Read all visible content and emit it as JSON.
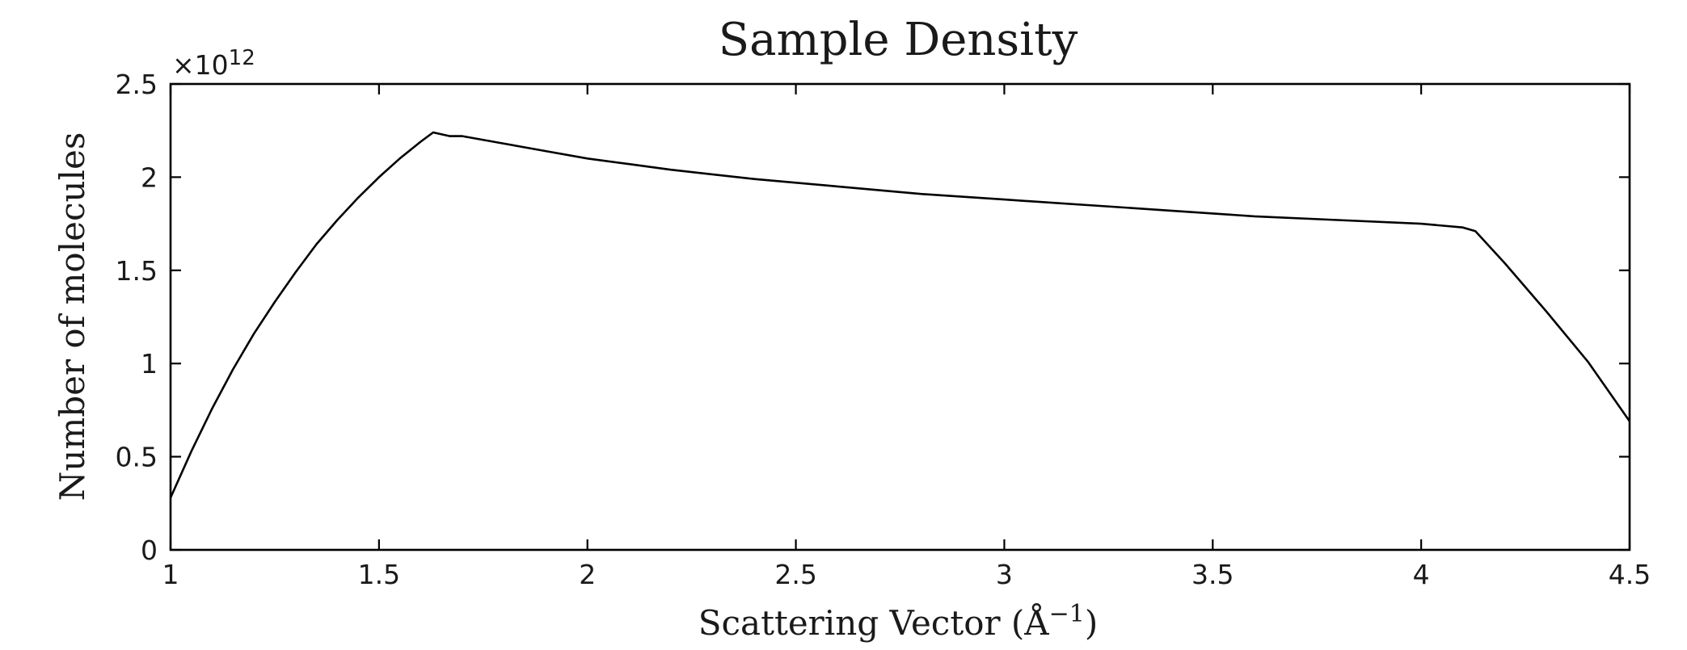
{
  "chart_data": {
    "type": "line",
    "title": "Sample Density",
    "xlabel": "Scattering Vector (Å",
    "xlabel_exponent": "−1",
    "xlabel_close": ")",
    "ylabel": "Number of molecules",
    "y_multiplier_base": "×10",
    "y_multiplier_exponent": "12",
    "xlim": [
      1,
      4.5
    ],
    "ylim": [
      0,
      2.5
    ],
    "grid": false,
    "legend": "none",
    "x_ticks": [
      1,
      1.5,
      2,
      2.5,
      3,
      3.5,
      4,
      4.5
    ],
    "x_tick_labels": [
      "1",
      "1.5",
      "2",
      "2.5",
      "3",
      "3.5",
      "4",
      "4.5"
    ],
    "y_ticks": [
      0,
      0.5,
      1,
      1.5,
      2,
      2.5
    ],
    "y_tick_labels": [
      "0",
      "0.5",
      "1",
      "1.5",
      "2",
      "2.5"
    ],
    "series": [
      {
        "color": "#000000",
        "x": [
          1.0,
          1.05,
          1.1,
          1.15,
          1.2,
          1.25,
          1.3,
          1.35,
          1.4,
          1.45,
          1.5,
          1.55,
          1.6,
          1.63,
          1.67,
          1.7,
          1.8,
          1.9,
          2.0,
          2.1,
          2.2,
          2.4,
          2.6,
          2.8,
          3.0,
          3.2,
          3.4,
          3.6,
          3.8,
          4.0,
          4.1,
          4.13,
          4.2,
          4.3,
          4.4,
          4.5
        ],
        "y": [
          0.28,
          0.53,
          0.76,
          0.97,
          1.16,
          1.33,
          1.49,
          1.64,
          1.77,
          1.89,
          2.0,
          2.1,
          2.19,
          2.24,
          2.22,
          2.22,
          2.18,
          2.14,
          2.1,
          2.07,
          2.04,
          1.99,
          1.95,
          1.91,
          1.88,
          1.85,
          1.82,
          1.79,
          1.77,
          1.75,
          1.73,
          1.71,
          1.54,
          1.28,
          1.01,
          0.69
        ]
      }
    ]
  }
}
